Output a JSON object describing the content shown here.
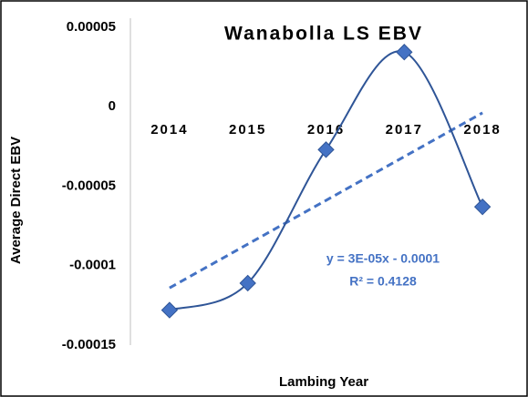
{
  "chart_data": {
    "type": "line",
    "title": "Wanabolla LS EBV",
    "x_label": "Lambing Year",
    "y_label": "Average Direct EBV",
    "categories": [
      "2014",
      "2015",
      "2016",
      "2017",
      "2018"
    ],
    "series": [
      {
        "name": "Average Direct EBV",
        "color": "#2f5597",
        "marker_color": "#4472c4",
        "values": [
          -0.000128,
          -0.000111,
          -2.7e-05,
          3.44e-05,
          -6.3e-05
        ]
      }
    ],
    "trendline": {
      "type": "linear",
      "color": "#4472c4",
      "equation": "y = 3E-05x - 0.0001",
      "r_squared": "R² = 0.4128"
    },
    "ylim": [
      -0.00015,
      5e-05
    ],
    "yticks": [
      5e-05,
      0,
      -5e-05,
      -0.0001,
      -0.00015
    ],
    "grid": false
  }
}
